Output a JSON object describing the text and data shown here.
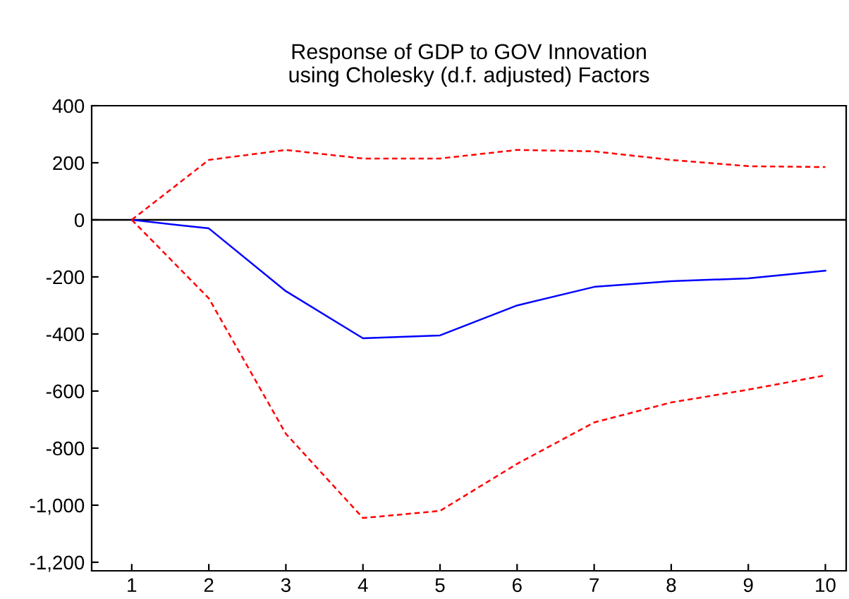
{
  "chart_data": {
    "type": "line",
    "title": "Response of GDP to GOV Innovation\nusing Cholesky (d.f. adjusted) Factors",
    "categories": [
      "1",
      "2",
      "3",
      "4",
      "5",
      "6",
      "7",
      "8",
      "9",
      "10"
    ],
    "series": [
      {
        "color": "#0000ff",
        "line_style": "solid",
        "values": [
          0,
          -30,
          -250,
          -415,
          -405,
          -300,
          -235,
          -215,
          -205,
          -178
        ]
      },
      {
        "color": "#ff0000",
        "line_style": "dashed",
        "values": [
          0,
          210,
          245,
          215,
          215,
          245,
          240,
          210,
          188,
          185
        ]
      },
      {
        "color": "#ff0000",
        "line_style": "dashed",
        "values": [
          0,
          -275,
          -750,
          -1045,
          -1020,
          -855,
          -710,
          -640,
          -595,
          -545
        ]
      }
    ],
    "ylim": [
      -1230,
      400
    ],
    "yticks": [
      400,
      200,
      0,
      {
        "value": -200,
        "label": "-200"
      },
      {
        "value": -400,
        "label": "-400"
      },
      {
        "value": -600,
        "label": "-600"
      },
      {
        "value": -800,
        "label": "-800"
      },
      {
        "value": -1000,
        "label": "-1,000"
      },
      {
        "value": -1200,
        "label": "-1,200"
      }
    ],
    "ref_lines": [
      {
        "axis": "y",
        "value": 0,
        "color": "#000000",
        "line_style": "solid"
      }
    ],
    "grid": false,
    "legend": false,
    "marker": "none"
  }
}
